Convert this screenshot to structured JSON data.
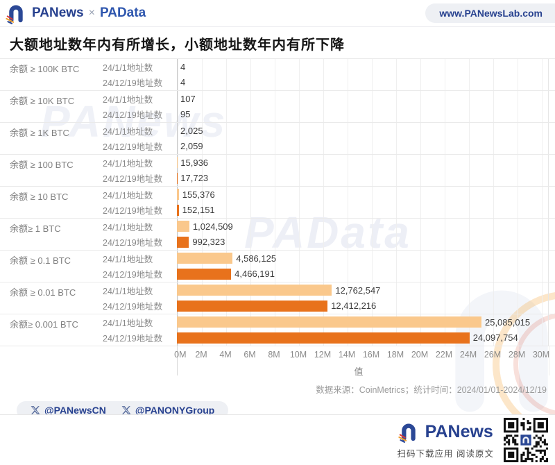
{
  "header": {
    "brand_primary": "PANews",
    "brand_separator": "×",
    "brand_secondary": "PAData",
    "website": "www.PANewsLab.com"
  },
  "title": "大额地址数年内有所增长，小额地址数年内有所下降",
  "chart_data": {
    "type": "bar",
    "orientation": "horizontal",
    "series": [
      {
        "name": "24/1/1地址数",
        "color": "#fac88c"
      },
      {
        "name": "24/12/19地址数",
        "color": "#e8721c"
      }
    ],
    "groups": [
      {
        "label": "余额 ≥ 100K BTC",
        "values": [
          4,
          4
        ]
      },
      {
        "label": "余额 ≥ 10K BTC",
        "values": [
          107,
          95
        ]
      },
      {
        "label": "余额 ≥ 1K BTC",
        "values": [
          2025,
          2059
        ]
      },
      {
        "label": "余额 ≥ 100 BTC",
        "values": [
          15936,
          17723
        ]
      },
      {
        "label": "余额 ≥ 10 BTC",
        "values": [
          155376,
          152151
        ]
      },
      {
        "label": "余额≥ 1 BTC",
        "values": [
          1024509,
          992323
        ]
      },
      {
        "label": "余额 ≥ 0.1 BTC",
        "values": [
          4586125,
          4466191
        ]
      },
      {
        "label": "余额 ≥ 0.01 BTC",
        "values": [
          12762547,
          12412216
        ]
      },
      {
        "label": "余额≥ 0.001 BTC",
        "values": [
          25085015,
          24097754
        ]
      }
    ],
    "x_ticks": [
      "0M",
      "2M",
      "4M",
      "6M",
      "8M",
      "10M",
      "12M",
      "14M",
      "16M",
      "18M",
      "20M",
      "22M",
      "24M",
      "26M",
      "28M",
      "30M"
    ],
    "xlabel": "值",
    "xlim": [
      0,
      30000000
    ],
    "grid": true,
    "legend_position": "none"
  },
  "source_note": "数据来源：CoinMetrics；统计时间：2024/01/01-2024/12/19",
  "social": {
    "handles": [
      {
        "label": "@PANewsCN"
      },
      {
        "label": "@PANONYGroup"
      }
    ]
  },
  "footer": {
    "brand": "PANews",
    "caption_download": "扫码下载应用",
    "caption_read": "阅读原文"
  },
  "watermarks": {
    "text1": "PANews",
    "text2": "PAData"
  }
}
